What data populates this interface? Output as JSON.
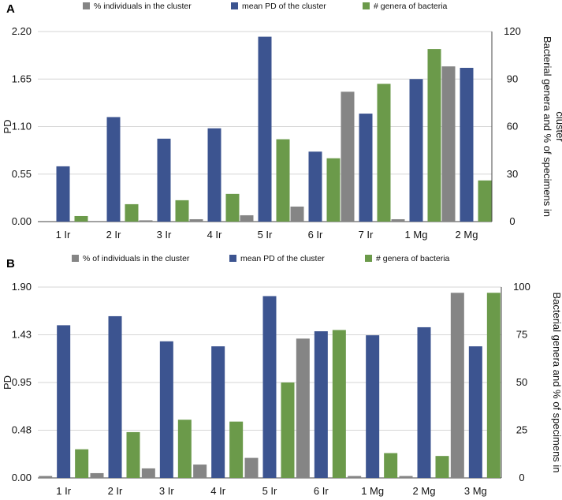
{
  "chart_data": [
    {
      "panel": "A",
      "type": "bar",
      "legend": [
        "% individuals in the cluster",
        "mean PD of the cluster",
        "# genera of bacteria"
      ],
      "colors": [
        "#858585",
        "#3c5490",
        "#6b9a4a"
      ],
      "ylabel_left": "PD",
      "ylabel_right_lines": [
        "Bacterial genera and % of specimens in",
        "cluster"
      ],
      "ylim_left": [
        0,
        2.2
      ],
      "ylim_right": [
        0,
        120
      ],
      "yticks_left": [
        "0.00",
        "0.55",
        "1.10",
        "1.65",
        "2.20"
      ],
      "yticks_right": [
        "0",
        "30",
        "60",
        "90",
        "120"
      ],
      "categories": [
        "1 Ir",
        "2 Ir",
        "3 Ir",
        "4 Ir",
        "5 Ir",
        "6 Ir",
        "7 Ir",
        "1 Mg",
        "2 Mg"
      ],
      "series": [
        {
          "name": "% individuals in the cluster",
          "axis": "right",
          "values": [
            0,
            0,
            0.8,
            1.5,
            4,
            9.5,
            82,
            1.5,
            98
          ]
        },
        {
          "name": "mean PD of the cluster",
          "axis": "left",
          "values": [
            0.64,
            1.21,
            0.96,
            1.08,
            2.14,
            0.81,
            1.25,
            1.65,
            1.78
          ]
        },
        {
          "name": "# genera of bacteria",
          "axis": "right",
          "values": [
            3.5,
            11,
            13.5,
            17.5,
            52,
            40,
            87,
            109,
            26
          ]
        }
      ]
    },
    {
      "panel": "B",
      "type": "bar",
      "legend": [
        "% of individuals in the cluster",
        "mean PD of the cluster",
        "# genera of bacteria"
      ],
      "colors": [
        "#858585",
        "#3c5490",
        "#6b9a4a"
      ],
      "ylabel_left": "PD",
      "ylabel_right_lines": [
        "Bacterial genera and % of specimens in",
        "cluster"
      ],
      "ylim_left": [
        0,
        1.9
      ],
      "ylim_right": [
        0,
        100
      ],
      "yticks_left": [
        "0.00",
        "0.48",
        "0.95",
        "1.43",
        "1.90"
      ],
      "yticks_right": [
        "0",
        "25",
        "50",
        "75",
        "100"
      ],
      "categories": [
        "1 Ir",
        "2 Ir",
        "3 Ir",
        "4 Ir",
        "5 Ir",
        "6 Ir",
        "1 Mg",
        "2 Mg",
        "3 Mg"
      ],
      "series": [
        {
          "name": "% of individuals in the cluster",
          "axis": "right",
          "values": [
            1,
            2.5,
            5,
            7,
            10.5,
            73,
            1,
            1,
            97
          ]
        },
        {
          "name": "mean PD of the cluster",
          "axis": "left",
          "values": [
            1.52,
            1.61,
            1.36,
            1.31,
            1.81,
            1.46,
            1.42,
            1.5,
            1.31
          ]
        },
        {
          "name": "# genera of bacteria",
          "axis": "right",
          "values": [
            15,
            24,
            30.5,
            29.5,
            50,
            77.5,
            13,
            11.5,
            97
          ]
        }
      ]
    }
  ]
}
